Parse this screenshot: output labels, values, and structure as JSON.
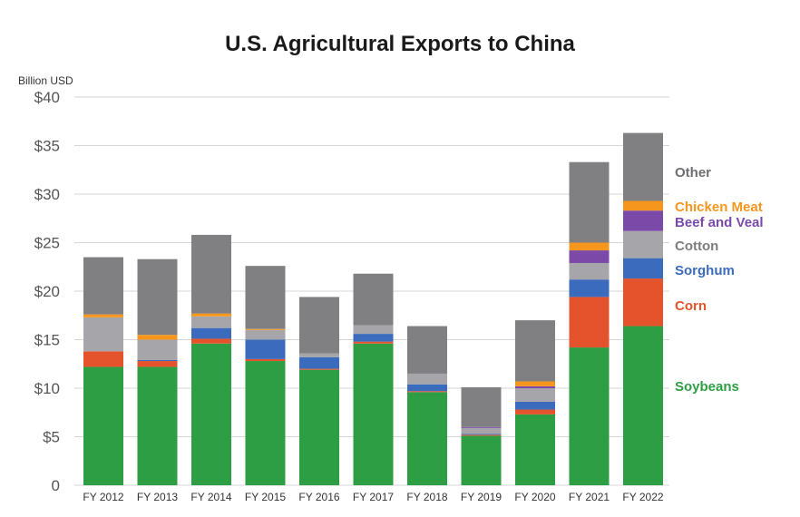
{
  "chart_data": {
    "type": "bar",
    "stacked": true,
    "title": "U.S. Agricultural Exports to China",
    "ylabel": "Billion USD",
    "xlabel": "",
    "ylim": [
      0,
      40
    ],
    "yticks": [
      {
        "value": 0,
        "label": "0"
      },
      {
        "value": 5,
        "label": "$5"
      },
      {
        "value": 10,
        "label": "$10"
      },
      {
        "value": 15,
        "label": "$15"
      },
      {
        "value": 20,
        "label": "$20"
      },
      {
        "value": 25,
        "label": "$25"
      },
      {
        "value": 30,
        "label": "$30"
      },
      {
        "value": 35,
        "label": "$35"
      },
      {
        "value": 40,
        "label": "$40"
      }
    ],
    "grid": true,
    "legend_position": "right",
    "categories": [
      "FY 2012",
      "FY 2013",
      "FY 2014",
      "FY 2015",
      "FY 2016",
      "FY 2017",
      "FY 2018",
      "FY 2019",
      "FY 2020",
      "FY 2021",
      "FY 2022"
    ],
    "series": [
      {
        "name": "Soybeans",
        "color": "#2e9e44",
        "values": [
          12.2,
          12.2,
          14.6,
          12.8,
          11.9,
          14.6,
          9.6,
          5.1,
          7.3,
          14.2,
          16.4
        ]
      },
      {
        "name": "Corn",
        "color": "#e4532b",
        "values": [
          1.6,
          0.6,
          0.5,
          0.2,
          0.1,
          0.2,
          0.1,
          0.1,
          0.5,
          5.2,
          4.9
        ]
      },
      {
        "name": "Sorghum",
        "color": "#3b6bbd",
        "values": [
          0.0,
          0.1,
          1.1,
          2.0,
          1.2,
          0.8,
          0.7,
          0.1,
          0.8,
          1.8,
          2.1
        ]
      },
      {
        "name": "Cotton",
        "color": "#a5a5aa",
        "values": [
          3.5,
          2.1,
          1.2,
          1.0,
          0.4,
          0.9,
          1.1,
          0.6,
          1.4,
          1.7,
          2.8
        ]
      },
      {
        "name": "Beef and Veal",
        "color": "#7b4aa9",
        "values": [
          0.0,
          0.0,
          0.0,
          0.0,
          0.0,
          0.0,
          0.0,
          0.1,
          0.2,
          1.3,
          2.1
        ]
      },
      {
        "name": "Chicken Meat",
        "color": "#f7961d",
        "values": [
          0.3,
          0.5,
          0.3,
          0.1,
          0.0,
          0.0,
          0.0,
          0.0,
          0.5,
          0.8,
          1.0
        ]
      },
      {
        "name": "Other",
        "color": "#808083",
        "values": [
          5.9,
          7.8,
          8.1,
          6.5,
          5.8,
          5.3,
          4.9,
          4.1,
          6.3,
          8.3,
          7.0
        ]
      }
    ],
    "legend_colors": {
      "Soybeans": "#2e9e44",
      "Corn": "#e4532b",
      "Sorghum": "#3b6bbd",
      "Cotton": "#7d7d80",
      "Beef and Veal": "#7b4aa9",
      "Chicken Meat": "#f7961d",
      "Other": "#6e6e72"
    }
  }
}
